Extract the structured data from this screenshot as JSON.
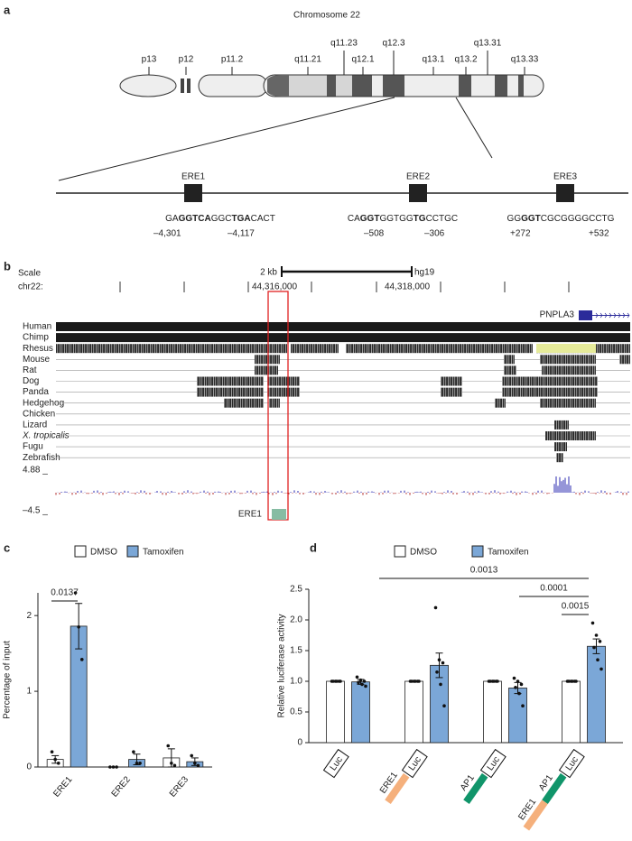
{
  "panel_a": {
    "label": "a",
    "title": "Chromosome 22",
    "bands": [
      "p13",
      "p12",
      "p11.2",
      "q11.21",
      "q11.23",
      "q12.1",
      "q12.3",
      "q13.1",
      "q13.2",
      "q13.31",
      "q13.33"
    ],
    "elements": [
      {
        "name": "ERE1",
        "sequence": [
          {
            "text": "GA"
          },
          {
            "text": "GGTCA",
            "bold": true
          },
          {
            "text": "GGC"
          },
          {
            "text": "TGA",
            "bold": true
          },
          {
            "text": "CACT"
          }
        ],
        "start": "–4,301",
        "end": "–4,117"
      },
      {
        "name": "ERE2",
        "sequence": [
          {
            "text": "CA"
          },
          {
            "text": "GGT",
            "bold": true
          },
          {
            "text": "GGTGG"
          },
          {
            "text": "TG",
            "bold": true
          },
          {
            "text": "CCTGC"
          }
        ],
        "start": "–508",
        "end": "–306"
      },
      {
        "name": "ERE3",
        "sequence": [
          {
            "text": "GG"
          },
          {
            "text": "GGT",
            "bold": true
          },
          {
            "text": "CGCGGGGCCTG"
          }
        ],
        "start": "+272",
        "end": "+532"
      }
    ]
  },
  "panel_b": {
    "label": "b",
    "scale": "Scale",
    "chrom": "chr22:",
    "scale_bar": "2 kb",
    "assembly": "hg19",
    "positions": [
      "44,316,000",
      "44,318,000"
    ],
    "gene": "PNPLA3",
    "species": [
      {
        "name": "Human",
        "color": "#26267a"
      },
      {
        "name": "Chimp",
        "color": "#26267a"
      },
      {
        "name": "Rhesus",
        "color": "#26267a"
      },
      {
        "name": "Mouse",
        "color": "#1e6b1e"
      },
      {
        "name": "Rat",
        "color": "#1e6b1e"
      },
      {
        "name": "Dog",
        "color": "#26267a"
      },
      {
        "name": "Panda",
        "color": "#26267a"
      },
      {
        "name": "Hedgehog",
        "color": "#26267a"
      },
      {
        "name": "Chicken",
        "color": "#1e6b1e"
      },
      {
        "name": "Lizard",
        "color": "#26267a"
      },
      {
        "name": "X. tropicalis",
        "color": "#26267a",
        "italic": true
      },
      {
        "name": "Fugu",
        "color": "#1e6b1e"
      },
      {
        "name": "Zebrafish",
        "color": "#1e6b1e"
      }
    ],
    "track_max": "4.88 _",
    "track_min": "–4.5 _",
    "highlight": "ERE1"
  },
  "chart_data": [
    {
      "type": "bar",
      "label": "c",
      "ylabel": "Percentage of input",
      "categories": [
        "ERE1",
        "ERE2",
        "ERE3"
      ],
      "ylim": [
        0,
        2.3
      ],
      "yticks": [
        0,
        1,
        2
      ],
      "series": [
        {
          "name": "DMSO",
          "color": "#ffffff",
          "values": [
            0.1,
            0,
            0.12
          ],
          "errors": [
            0.05,
            0,
            0.12
          ],
          "points": [
            [
              0.2,
              0.1,
              0.05
            ],
            [
              0,
              0,
              0
            ],
            [
              0.28,
              0.05,
              0.02
            ]
          ]
        },
        {
          "name": "Tamoxifen",
          "color": "#7ba7d7",
          "values": [
            1.86,
            0.1,
            0.07
          ],
          "errors": [
            0.3,
            0.07,
            0.05
          ],
          "points": [
            [
              2.3,
              1.85,
              1.42
            ],
            [
              0.2,
              0.05,
              0.05
            ],
            [
              0.15,
              0.05,
              0.02
            ]
          ]
        }
      ],
      "annotations": [
        "0.0137"
      ]
    },
    {
      "type": "bar",
      "label": "d",
      "ylabel": "Relative luciferase activity",
      "constructs": [
        [
          {
            "text": "Luc"
          }
        ],
        [
          {
            "text": "ERE1",
            "color": "#f5b07c"
          },
          {
            "text": "Luc"
          }
        ],
        [
          {
            "text": "AP1",
            "color": "#10956a"
          },
          {
            "text": "Luc"
          }
        ],
        [
          {
            "text": "ERE1",
            "color": "#f5b07c"
          },
          {
            "text": "AP1",
            "color": "#10956a"
          },
          {
            "text": "Luc"
          }
        ]
      ],
      "ylim": [
        0,
        2.5
      ],
      "yticks": [
        0,
        0.5,
        {
          "value": 1,
          "label": "1.0"
        },
        1.5,
        {
          "value": 2,
          "label": "2.0"
        },
        2.5
      ],
      "series": [
        {
          "name": "DMSO",
          "color": "#ffffff",
          "values": [
            1,
            1,
            1,
            1
          ],
          "errors": [
            0,
            0,
            0,
            0
          ],
          "points": [
            [
              1,
              1,
              1,
              1,
              1,
              1
            ],
            [
              1,
              1,
              1,
              1,
              1,
              1
            ],
            [
              1,
              1,
              1,
              1,
              1,
              1
            ],
            [
              1,
              1,
              1,
              1,
              1,
              1
            ]
          ]
        },
        {
          "name": "Tamoxifen",
          "color": "#7ba7d7",
          "values": [
            0.99,
            1.26,
            0.89,
            1.57
          ],
          "errors": [
            0.04,
            0.2,
            0.09,
            0.12
          ],
          "points": [
            [
              1.07,
              1.02,
              1,
              0.98,
              0.95,
              0.92
            ],
            [
              2.2,
              1.35,
              1.3,
              1.15,
              0.95,
              0.6
            ],
            [
              1.05,
              1,
              0.95,
              0.9,
              0.8,
              0.6
            ],
            [
              1.95,
              1.75,
              1.65,
              1.55,
              1.35,
              1.2
            ]
          ]
        }
      ],
      "annotations": [
        "0.0013",
        "0.0001",
        "0.0015"
      ]
    }
  ]
}
